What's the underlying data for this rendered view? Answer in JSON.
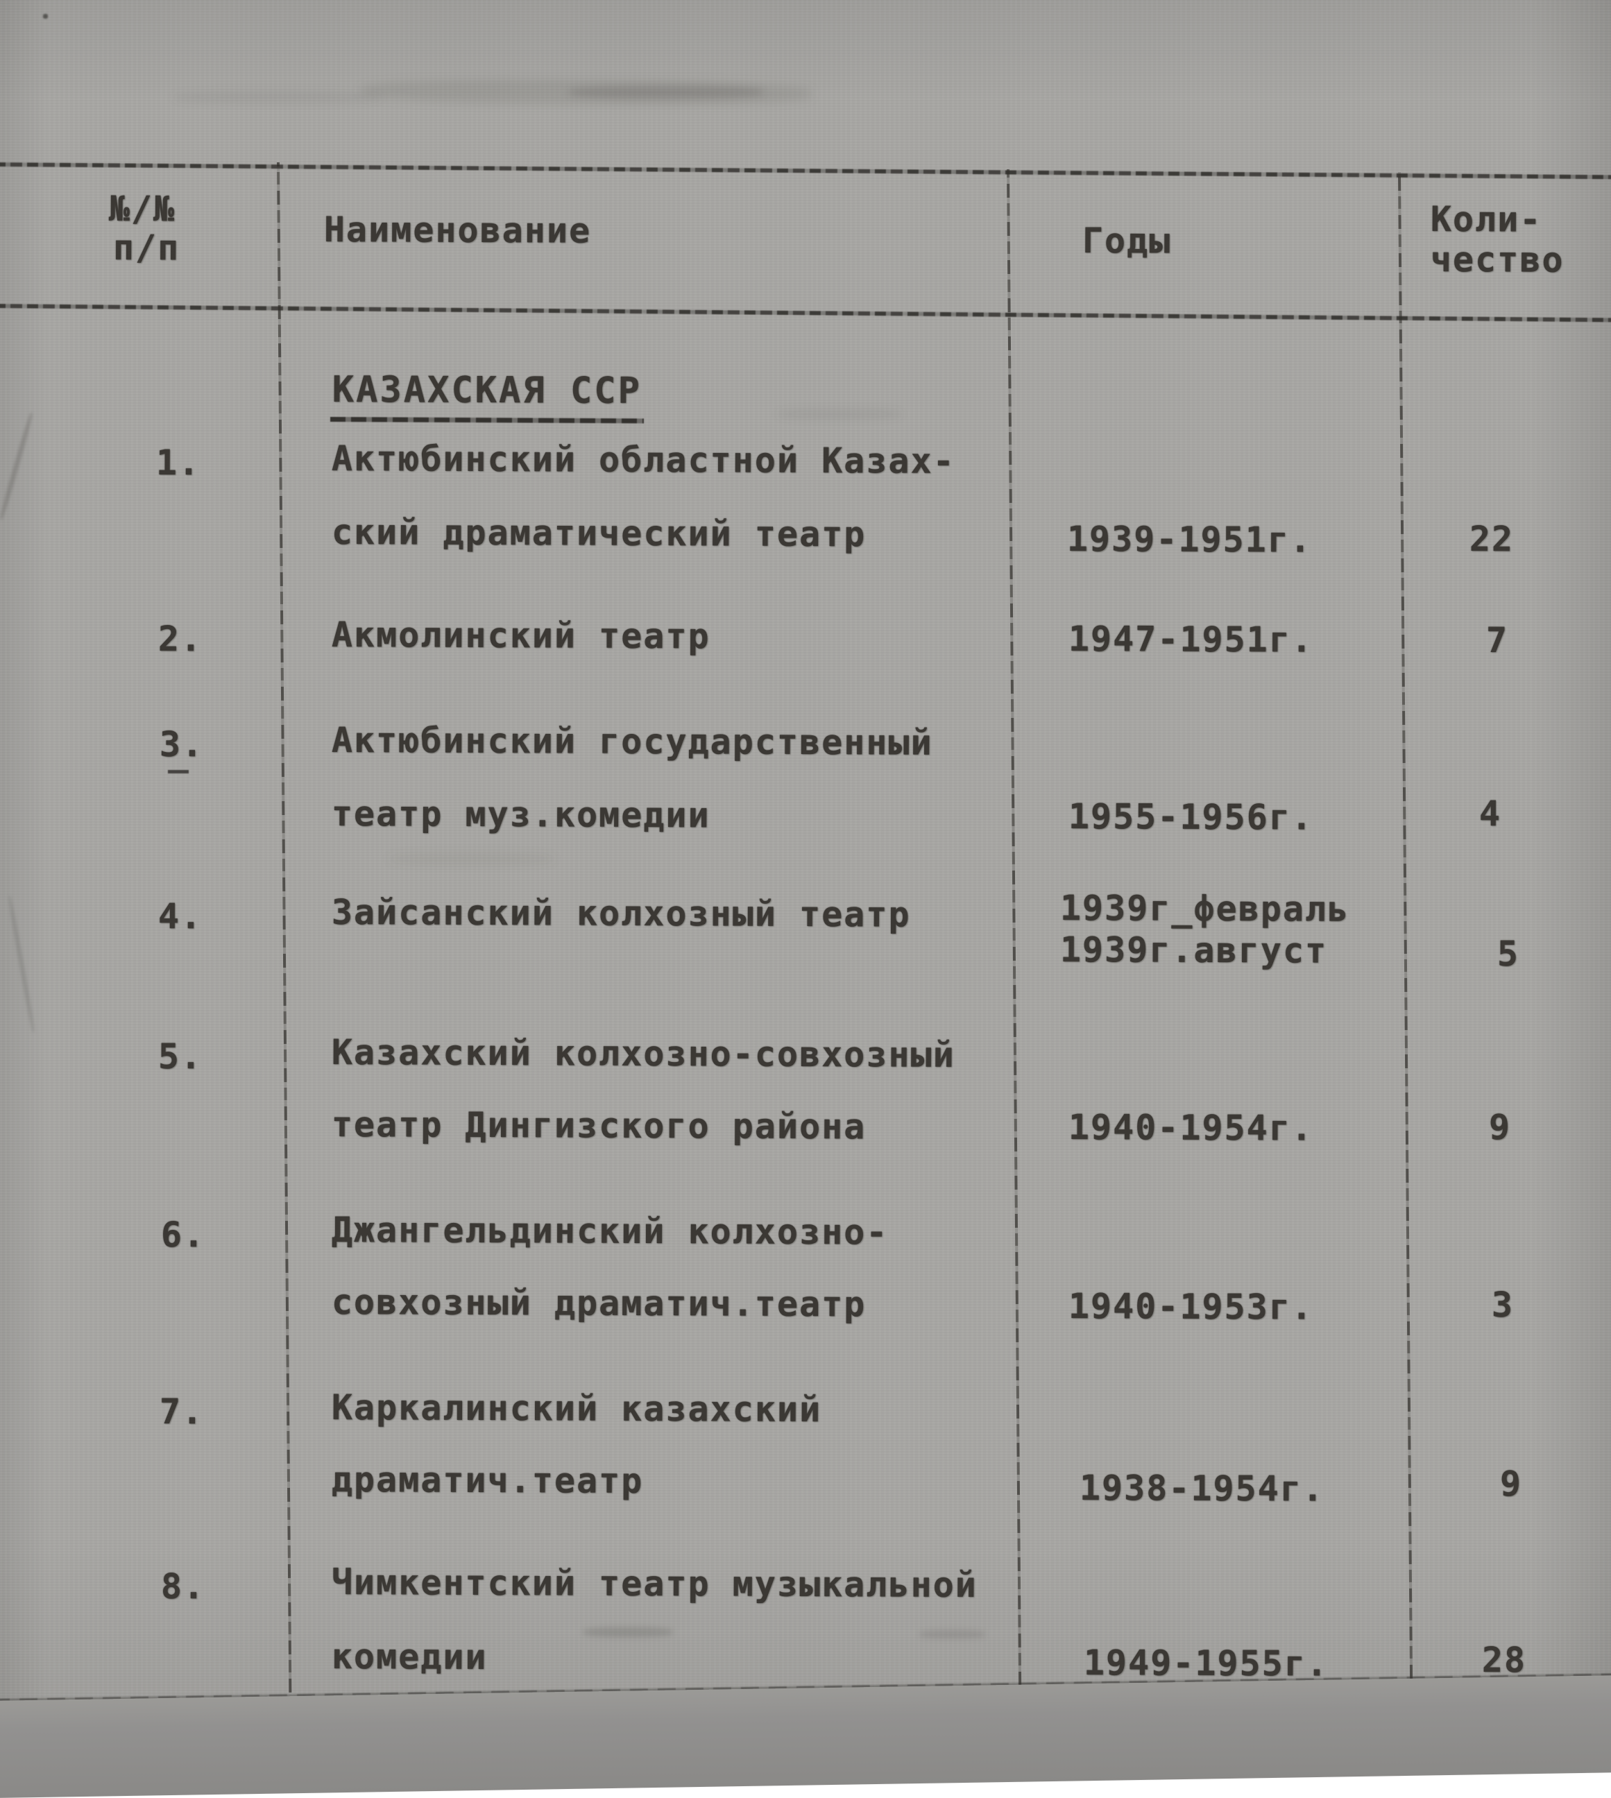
{
  "document": {
    "kind": "scanned typewritten archival inventory table",
    "section_heading": "КАЗАХСКАЯ ССР",
    "table": {
      "headers": {
        "num_lines": [
          "№/№",
          "п/п"
        ],
        "name": "Наименование",
        "years": "Годы",
        "count_lines": [
          "Коли-",
          "чество"
        ]
      },
      "rows": [
        {
          "num": "1.",
          "name_lines": [
            "Актюбинский областной Казах-",
            "ский драматический театр"
          ],
          "years_lines": [
            "1939-1951г."
          ],
          "count": "22"
        },
        {
          "num": "2.",
          "name_lines": [
            "Акмолинский театр"
          ],
          "years_lines": [
            "1947-1951г."
          ],
          "count": "7"
        },
        {
          "num": "3.",
          "name_lines": [
            "Актюбинский государственный",
            "театр муз.комедии"
          ],
          "years_lines": [
            "1955-1956г."
          ],
          "count": "4",
          "num_underlined": true
        },
        {
          "num": "4.",
          "name_lines": [
            "Зайсанский колхозный театр"
          ],
          "years_lines": [
            "1939г_февраль",
            "1939г.август"
          ],
          "count": "5"
        },
        {
          "num": "5.",
          "name_lines": [
            "Казахский колхозно-совхозный",
            "театр Дингизского района"
          ],
          "years_lines": [
            "1940-1954г."
          ],
          "count": "9"
        },
        {
          "num": "6.",
          "name_lines": [
            "Джангельдинский колхозно-",
            "совхозный драматич.театр"
          ],
          "years_lines": [
            "1940-1953г."
          ],
          "count": "3"
        },
        {
          "num": "7.",
          "name_lines": [
            "Каркалинский казахский",
            "драматич.театр"
          ],
          "years_lines": [
            "1938-1954г."
          ],
          "count": "9"
        },
        {
          "num": "8.",
          "name_lines": [
            "Чимкентский театр музыкальной",
            "комедии"
          ],
          "years_lines": [
            "1949-1955г."
          ],
          "count": "28"
        }
      ]
    }
  },
  "colors": {
    "paper": "#a8a7a4",
    "ink": "#3b3834",
    "table_line": "#44423e",
    "bottom_shadow": "#8d8c89"
  }
}
